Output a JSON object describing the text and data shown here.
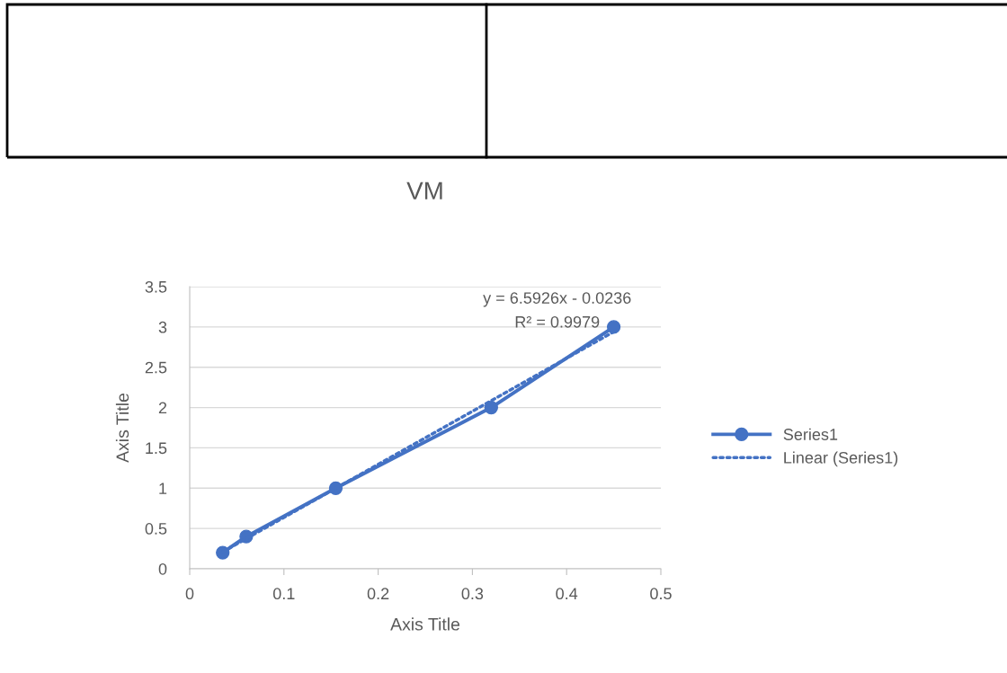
{
  "chart_data": {
    "type": "line",
    "title": "VM",
    "xlabel": "Axis Title",
    "ylabel": "Axis Title",
    "series": [
      {
        "name": "Series1",
        "color": "#4472c4",
        "x": [
          0.035,
          0.06,
          0.155,
          0.32,
          0.45
        ],
        "values": [
          0.2,
          0.4,
          1,
          2,
          3
        ],
        "marker": "circle",
        "line_style": "solid"
      },
      {
        "name": "Linear (Series1)",
        "color": "#4472c4",
        "x": [
          0.035,
          0.45
        ],
        "values": [
          0.21,
          2.94
        ],
        "marker": "none",
        "line_style": "dotted"
      }
    ],
    "annotations": [
      "y = 6.5926x - 0.0236",
      "R² = 0.9979"
    ],
    "xlim": [
      0,
      0.5
    ],
    "xticks": [
      0,
      0.1,
      0.2,
      0.3,
      0.4,
      0.5
    ],
    "ylim": [
      0,
      3.5
    ],
    "yticks": [
      0,
      0.5,
      1,
      1.5,
      2,
      2.5,
      3,
      3.5
    ],
    "grid": "y",
    "legend": "right"
  }
}
